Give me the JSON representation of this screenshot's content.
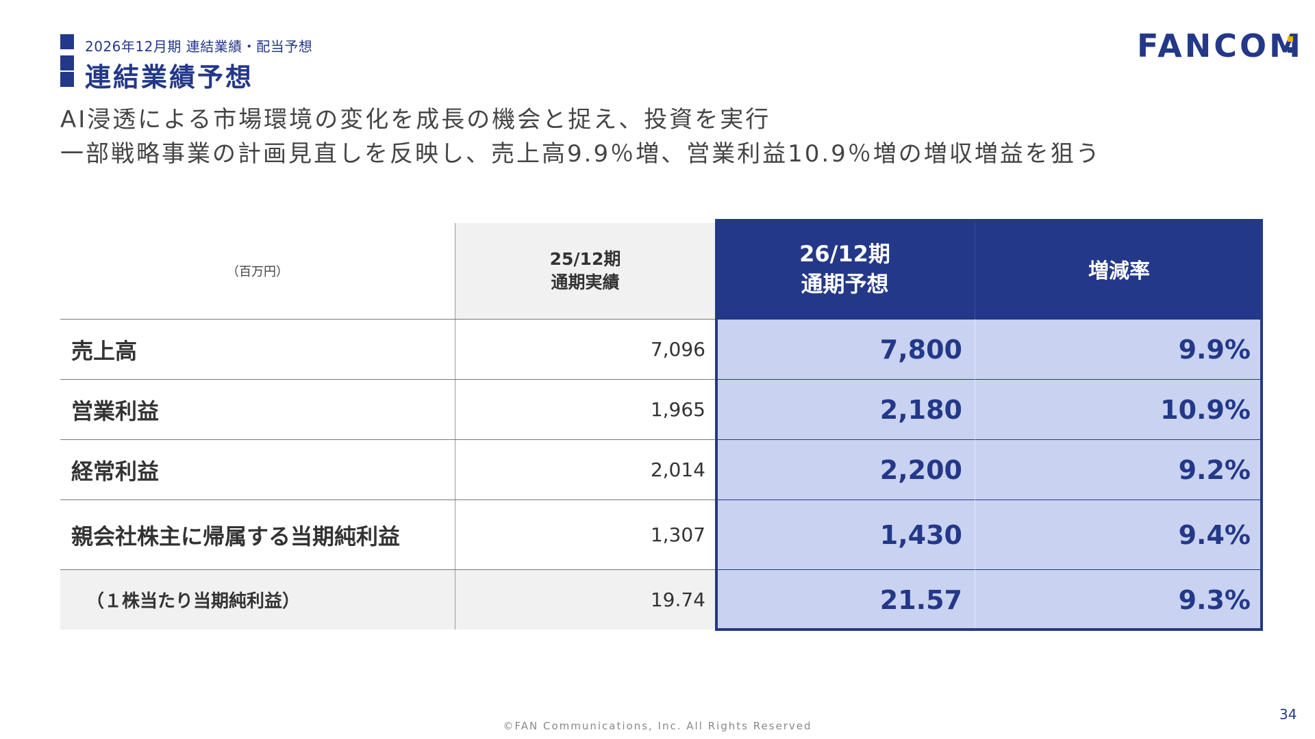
{
  "header": {
    "subtitle": "2026年12月期 連結業績・配当予想",
    "title": "連結業績予想",
    "logo": "FANCOM"
  },
  "lead": {
    "line1": "AI浸透による市場環境の変化を成長の機会と捉え、投資を実行",
    "line2": "一部戦略事業の計画見直しを反映し、売上高9.9％増、営業利益10.9％増の増収増益を狙う"
  },
  "table": {
    "unit": "（百万円）",
    "col_prev": {
      "line1": "25/12期",
      "line2": "通期実績"
    },
    "col_forecast": {
      "line1": "26/12期",
      "line2": "通期予想"
    },
    "col_rate": "増減率",
    "rows": [
      {
        "label": "売上高",
        "prev": "7,096",
        "forecast": "7,800",
        "rate": "9.9%"
      },
      {
        "label": "営業利益",
        "prev": "1,965",
        "forecast": "2,180",
        "rate": "10.9%"
      },
      {
        "label": "経常利益",
        "prev": "2,014",
        "forecast": "2,200",
        "rate": "9.2%"
      },
      {
        "label": "親会社株主に帰属する当期純利益",
        "prev": "1,307",
        "forecast": "1,430",
        "rate": "9.4%"
      },
      {
        "label": "（１株当たり当期純利益）",
        "prev": "19.74",
        "forecast": "21.57",
        "rate": "9.3%"
      }
    ]
  },
  "footer": {
    "copyright": "©FAN Communications, Inc. All Rights Reserved",
    "page": "34"
  },
  "colors": {
    "brand": "#233888",
    "highlight": "#c9d2f0",
    "accent": "#e8b400"
  }
}
